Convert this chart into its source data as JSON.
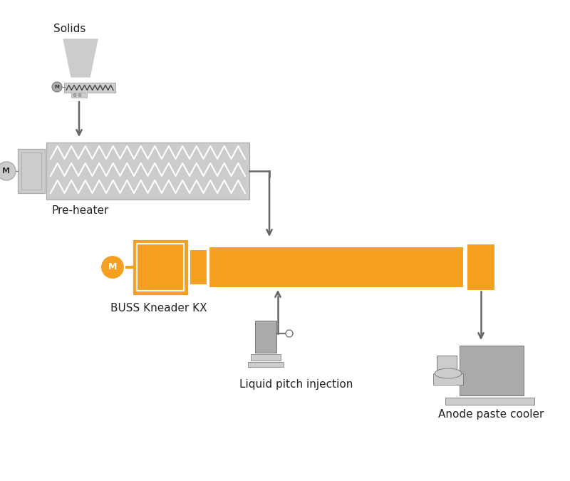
{
  "bg_color": "#ffffff",
  "gray_light": "#cccccc",
  "gray_medium": "#aaaaaa",
  "gray_dark": "#777777",
  "orange": "#f5a020",
  "white": "#ffffff",
  "arrow_color": "#666666",
  "labels": {
    "solids": "Solids",
    "pre_heater": "Pre-heater",
    "buss_kneader": "BUSS Kneader KX",
    "liquid_pitch": "Liquid pitch injection",
    "anode_cooler": "Anode paste cooler"
  },
  "fig_w": 8.0,
  "fig_h": 6.75,
  "dpi": 100
}
